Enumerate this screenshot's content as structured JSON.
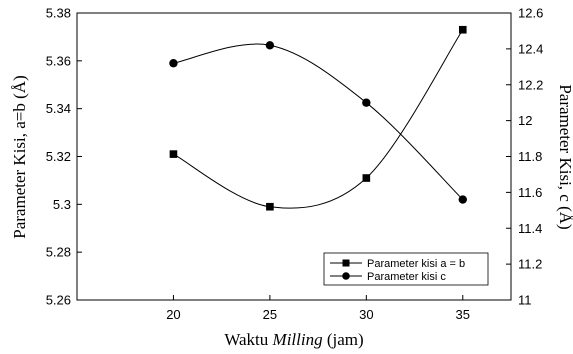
{
  "chart_data": {
    "type": "line",
    "x": [
      20,
      25,
      30,
      35
    ],
    "xlim": [
      15,
      37.5
    ],
    "xticks": [
      20,
      25,
      30,
      35
    ],
    "xlabel_prefix": "Waktu ",
    "xlabel_italic": "Milling",
    "xlabel_suffix": " (jam)",
    "ylabel_left": "Parameter Kisi, a=b (Å)",
    "ylabel_right": "Parameter Kisi, c (Å)",
    "ylim_left": [
      5.26,
      5.38
    ],
    "yticks_left": [
      "5.26",
      "5.28",
      "5.3",
      "5.32",
      "5.34",
      "5.36",
      "5.38"
    ],
    "ylim_right": [
      11,
      12.6
    ],
    "yticks_right": [
      "11",
      "11.2",
      "11.4",
      "11.6",
      "11.8",
      "12",
      "12.2",
      "12.4",
      "12.6"
    ],
    "series": [
      {
        "name": "Parameter kisi a = b",
        "axis": "left",
        "marker": "square",
        "values": [
          5.321,
          5.299,
          5.311,
          5.373
        ]
      },
      {
        "name": "Parameter kisi c",
        "axis": "right",
        "marker": "circle",
        "values": [
          12.32,
          12.42,
          12.1,
          11.56
        ]
      }
    ],
    "grid": false,
    "legend_position": "bottom-right",
    "colors": {
      "line": "#000000",
      "marker": "#000000"
    }
  }
}
